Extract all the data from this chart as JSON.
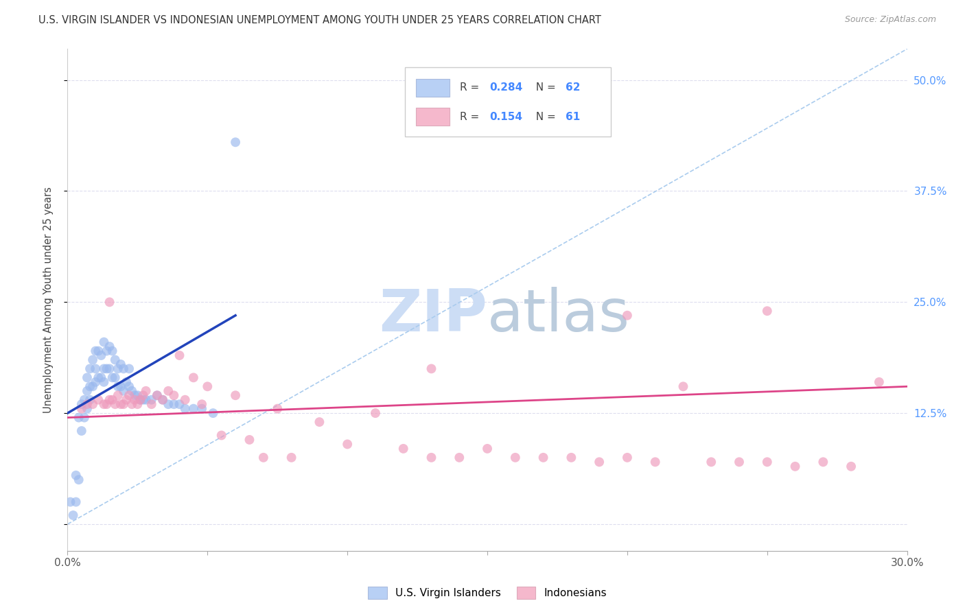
{
  "title": "U.S. VIRGIN ISLANDER VS INDONESIAN UNEMPLOYMENT AMONG YOUTH UNDER 25 YEARS CORRELATION CHART",
  "source": "Source: ZipAtlas.com",
  "ylabel": "Unemployment Among Youth under 25 years",
  "ylabel_ticks": [
    0.0,
    0.125,
    0.25,
    0.375,
    0.5
  ],
  "ylabel_labels": [
    "",
    "12.5%",
    "25.0%",
    "37.5%",
    "50.0%"
  ],
  "xmin": 0.0,
  "xmax": 0.3,
  "ymin": -0.03,
  "ymax": 0.535,
  "legend_r_color": "#4488ff",
  "blue_color": "#b8d0f5",
  "pink_color": "#f5b8cc",
  "blue_scatter_color": "#99b8ee",
  "pink_scatter_color": "#ee99bb",
  "blue_line_color": "#2244bb",
  "pink_line_color": "#dd4488",
  "diag_line_color": "#aaccee",
  "watermark_zip_color": "#ccddf5",
  "watermark_atlas_color": "#bbccdd",
  "title_fontsize": 10.5,
  "source_fontsize": 9,
  "blue_points_x": [
    0.001,
    0.002,
    0.003,
    0.003,
    0.004,
    0.004,
    0.005,
    0.005,
    0.006,
    0.006,
    0.007,
    0.007,
    0.007,
    0.008,
    0.008,
    0.008,
    0.009,
    0.009,
    0.01,
    0.01,
    0.01,
    0.011,
    0.011,
    0.012,
    0.012,
    0.013,
    0.013,
    0.013,
    0.014,
    0.014,
    0.015,
    0.015,
    0.016,
    0.016,
    0.017,
    0.017,
    0.018,
    0.018,
    0.019,
    0.019,
    0.02,
    0.02,
    0.021,
    0.022,
    0.022,
    0.023,
    0.024,
    0.025,
    0.026,
    0.027,
    0.028,
    0.03,
    0.032,
    0.034,
    0.036,
    0.038,
    0.04,
    0.042,
    0.045,
    0.048,
    0.052,
    0.06
  ],
  "blue_points_y": [
    0.025,
    0.01,
    0.025,
    0.055,
    0.05,
    0.12,
    0.105,
    0.135,
    0.12,
    0.14,
    0.13,
    0.15,
    0.165,
    0.14,
    0.155,
    0.175,
    0.155,
    0.185,
    0.16,
    0.175,
    0.195,
    0.165,
    0.195,
    0.165,
    0.19,
    0.16,
    0.175,
    0.205,
    0.175,
    0.195,
    0.175,
    0.2,
    0.165,
    0.195,
    0.165,
    0.185,
    0.155,
    0.175,
    0.155,
    0.18,
    0.15,
    0.175,
    0.16,
    0.155,
    0.175,
    0.15,
    0.145,
    0.145,
    0.14,
    0.14,
    0.14,
    0.14,
    0.145,
    0.14,
    0.135,
    0.135,
    0.135,
    0.13,
    0.13,
    0.13,
    0.125,
    0.43
  ],
  "pink_points_x": [
    0.005,
    0.007,
    0.009,
    0.011,
    0.013,
    0.014,
    0.015,
    0.016,
    0.017,
    0.018,
    0.019,
    0.02,
    0.021,
    0.022,
    0.023,
    0.024,
    0.025,
    0.026,
    0.027,
    0.028,
    0.03,
    0.032,
    0.034,
    0.036,
    0.038,
    0.04,
    0.042,
    0.045,
    0.048,
    0.05,
    0.055,
    0.06,
    0.065,
    0.07,
    0.075,
    0.08,
    0.09,
    0.1,
    0.11,
    0.12,
    0.13,
    0.14,
    0.15,
    0.16,
    0.17,
    0.18,
    0.19,
    0.2,
    0.21,
    0.22,
    0.23,
    0.24,
    0.25,
    0.26,
    0.27,
    0.28,
    0.29,
    0.13,
    0.25,
    0.2,
    0.015
  ],
  "pink_points_y": [
    0.13,
    0.135,
    0.135,
    0.14,
    0.135,
    0.135,
    0.14,
    0.14,
    0.135,
    0.145,
    0.135,
    0.135,
    0.14,
    0.145,
    0.135,
    0.14,
    0.135,
    0.14,
    0.145,
    0.15,
    0.135,
    0.145,
    0.14,
    0.15,
    0.145,
    0.19,
    0.14,
    0.165,
    0.135,
    0.155,
    0.1,
    0.145,
    0.095,
    0.075,
    0.13,
    0.075,
    0.115,
    0.09,
    0.125,
    0.085,
    0.075,
    0.075,
    0.085,
    0.075,
    0.075,
    0.075,
    0.07,
    0.075,
    0.07,
    0.155,
    0.07,
    0.07,
    0.07,
    0.065,
    0.07,
    0.065,
    0.16,
    0.175,
    0.24,
    0.235,
    0.25
  ],
  "blue_line_x": [
    0.0,
    0.06
  ],
  "blue_line_y": [
    0.125,
    0.235
  ],
  "pink_line_x": [
    0.0,
    0.3
  ],
  "pink_line_y": [
    0.12,
    0.155
  ],
  "grid_color": "#ddddee",
  "scatter_size": 100
}
